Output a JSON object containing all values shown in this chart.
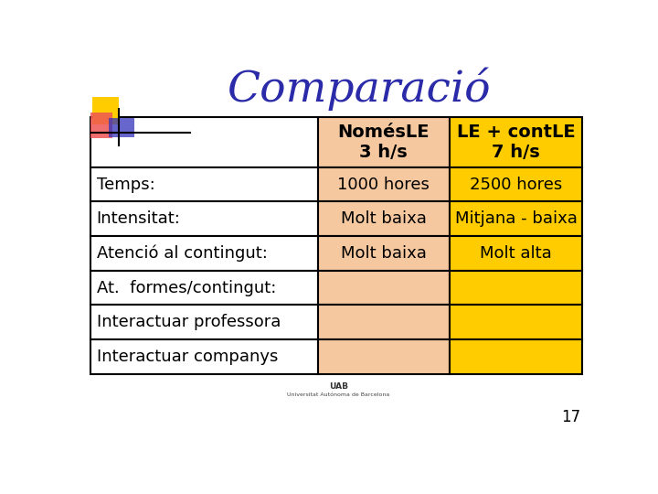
{
  "title": "Comparació",
  "title_color": "#2b2baa",
  "title_fontsize": 34,
  "background_color": "#ffffff",
  "col1_bg": "#ffffff",
  "col2_bg": "#f5c8a0",
  "col3_bg": "#ffcc00",
  "header_row": [
    "",
    "NomésLE\n3 h/s",
    "LE + contLE\n7 h/s"
  ],
  "rows": [
    [
      "Temps:",
      "1000 hores",
      "2500 hores"
    ],
    [
      "Intensitat:",
      "Molt baixa",
      "Mitjana - baixa"
    ],
    [
      "Atenció al contingut:",
      "Molt baixa",
      "Molt alta"
    ],
    [
      "At.  formes/contingut:",
      "",
      ""
    ],
    [
      "Interactuar professora",
      "",
      ""
    ],
    [
      "Interactuar companys",
      "",
      ""
    ]
  ],
  "cell_fontsize": 13,
  "header_fontsize": 14,
  "page_number": "17",
  "decoration_yellow": "#ffcc00",
  "decoration_red": "#ee5555",
  "decoration_blue": "#3333bb",
  "uab_text": "UAB",
  "uab_subtext": "Universitat Autónoma de Barcelona"
}
